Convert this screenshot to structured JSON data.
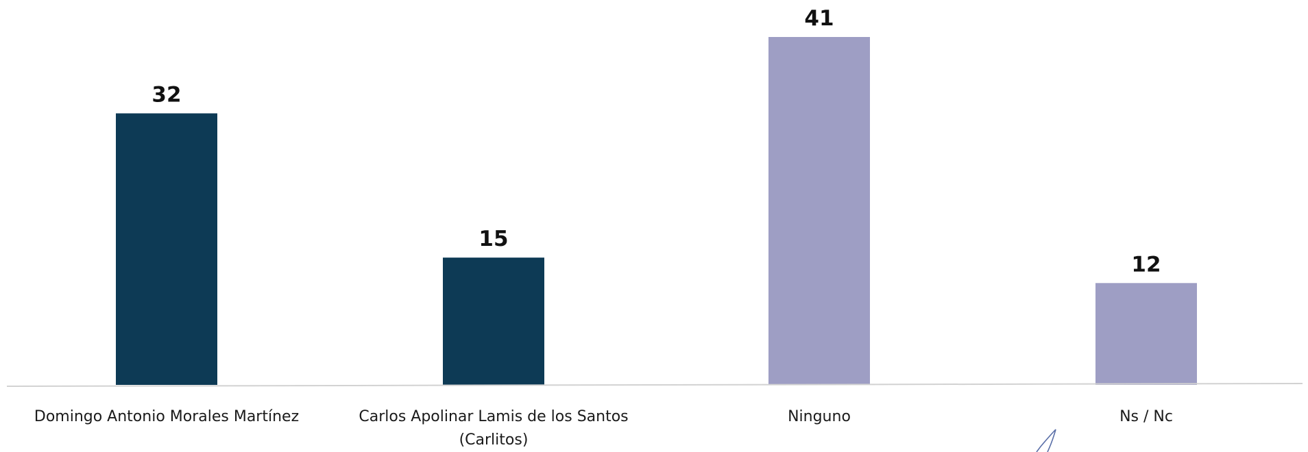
{
  "chart_data": {
    "type": "bar",
    "categories": [
      [
        "Domingo Antonio Morales Martínez"
      ],
      [
        "Carlos Apolinar Lamis de los Santos",
        "(Carlitos)"
      ],
      [
        "Ninguno"
      ],
      [
        "Ns / Nc"
      ]
    ],
    "values": [
      32,
      15,
      41,
      12
    ],
    "colors": [
      "#0d3a55",
      "#0d3a55",
      "#9e9ec4",
      "#9e9ec4"
    ],
    "ylim": [
      0,
      41
    ],
    "grid": false,
    "title": "",
    "xlabel": "",
    "ylabel": ""
  }
}
